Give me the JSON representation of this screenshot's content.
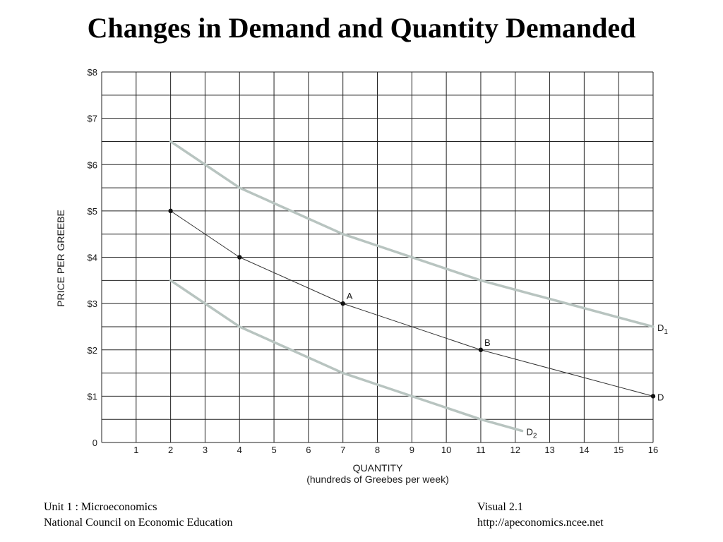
{
  "slide": {
    "title": "Changes in Demand and Quantity Demanded",
    "footer_left_line1": "Unit 1 : Microeconomics",
    "footer_left_line2": "National Council on Economic Education",
    "footer_right_line1": "Visual 2.1",
    "footer_right_line2": "http://apeconomics.ncee.net"
  },
  "chart_data": {
    "type": "line",
    "title": "",
    "xlabel": "QUANTITY",
    "xlabel_sub": "(hundreds of Greebes per week)",
    "ylabel": "PRICE PER GREEBE",
    "xlim": [
      0,
      16
    ],
    "ylim": [
      0,
      8
    ],
    "grid": true,
    "x_ticks": [
      "1",
      "2",
      "3",
      "4",
      "5",
      "6",
      "7",
      "8",
      "9",
      "10",
      "11",
      "12",
      "13",
      "14",
      "15",
      "16"
    ],
    "y_ticks": [
      "0",
      "$1",
      "$2",
      "$3",
      "$4",
      "$5",
      "$6",
      "$7",
      "$8"
    ],
    "series": [
      {
        "name": "D",
        "color": "#333333",
        "style": "thin",
        "points": [
          [
            2,
            5
          ],
          [
            4,
            4
          ],
          [
            7,
            3
          ],
          [
            11,
            2
          ],
          [
            16,
            1
          ]
        ],
        "markers": true
      },
      {
        "name": "D1",
        "color": "#b8c4c0",
        "style": "thick",
        "points": [
          [
            2,
            6.5
          ],
          [
            4,
            5.5
          ],
          [
            7,
            4.5
          ],
          [
            11,
            3.5
          ],
          [
            16,
            2.5
          ]
        ],
        "markers": false
      },
      {
        "name": "D2",
        "color": "#b8c4c0",
        "style": "thick",
        "points": [
          [
            2,
            3.5
          ],
          [
            4,
            2.5
          ],
          [
            7,
            1.5
          ],
          [
            11,
            0.5
          ],
          [
            12.2,
            0.25
          ]
        ],
        "markers": false
      }
    ],
    "series_labels": [
      {
        "base": "D",
        "sub": "1",
        "series": "D1"
      },
      {
        "base": "D",
        "sub": "",
        "series": "D"
      },
      {
        "base": "D",
        "sub": "2",
        "series": "D2"
      }
    ],
    "point_labels": [
      {
        "text": "A",
        "x": 7,
        "y": 3
      },
      {
        "text": "B",
        "x": 11,
        "y": 2
      }
    ]
  }
}
